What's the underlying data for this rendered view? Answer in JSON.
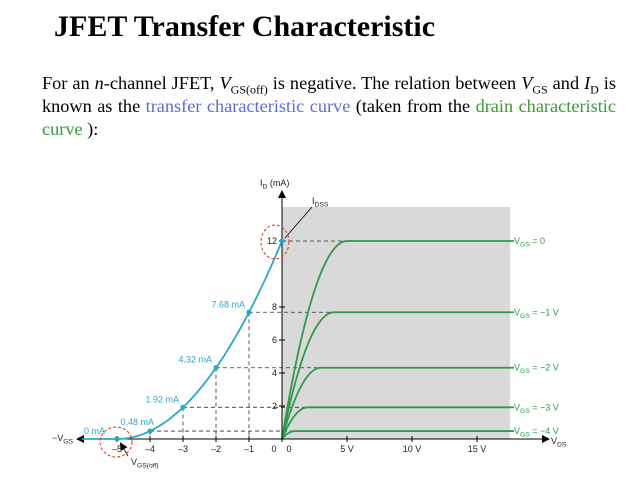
{
  "title": "JFET Transfer Characteristic",
  "body": {
    "t1": "For an ",
    "t2": "n",
    "t3": "-channel JFET, ",
    "t4": "V",
    "t5": "GS(off)",
    "t6": " is negative. The relation between ",
    "t7": "V",
    "t8": "GS",
    "t9": " and ",
    "t10": "I",
    "t11": "D",
    "t12": " is known as the ",
    "link_transfer": "transfer characteristic curve",
    "t13": " (taken from the ",
    "link_drain": "drain characteristic curve",
    "t14": " ):"
  },
  "colors": {
    "transfer_curve": "#2aa8c9",
    "drain_curves": "#2e9a4a",
    "panel_bg": "#d9d9d9",
    "highlight_circle": "#e0301e",
    "link_blue": "#5b6ed6",
    "link_green": "#3a9a3a"
  },
  "chart_data": {
    "type": "line",
    "y_axis_label": {
      "main": "I",
      "sub": "D",
      "unit": " (mA)"
    },
    "y_ticks": [
      "12",
      "8",
      "6",
      "4",
      "2"
    ],
    "idss_label": {
      "main": "I",
      "sub": "DSS"
    },
    "vgs_axis": {
      "label": "−V",
      "label_sub": "GS",
      "ticks": [
        {
          "value": -5,
          "label": "–5"
        },
        {
          "value": -4,
          "label": "–4"
        },
        {
          "value": -3,
          "label": "–3"
        },
        {
          "value": -2,
          "label": "–2"
        },
        {
          "value": -1,
          "label": "–1"
        },
        {
          "value": 0,
          "label": "0"
        }
      ],
      "vgs_off_label": {
        "main": "V",
        "sub": "GS(off)"
      }
    },
    "vds_axis": {
      "label": "V",
      "label_sub": "DS",
      "ticks": [
        {
          "value": 0,
          "label": "0"
        },
        {
          "value": 5,
          "label": "5 V"
        },
        {
          "value": 10,
          "label": "10 V"
        },
        {
          "value": 15,
          "label": "15 V"
        }
      ]
    },
    "transfer_points": [
      {
        "vgs": -5,
        "id": 0,
        "label": "0 mA"
      },
      {
        "vgs": -4,
        "id": 0.48,
        "label": "0.48 mA"
      },
      {
        "vgs": -3,
        "id": 1.92,
        "label": "1.92 mA"
      },
      {
        "vgs": -2,
        "id": 4.32,
        "label": "4.32 mA"
      },
      {
        "vgs": -1,
        "id": 7.68,
        "label": "7.68 mA"
      },
      {
        "vgs": 0,
        "id": 12,
        "label": ""
      }
    ],
    "drain_curves": [
      {
        "vgs": 0,
        "id_sat": 12,
        "label": "V",
        "label_sub": "GS",
        "label_val": " = 0"
      },
      {
        "vgs": -1,
        "id_sat": 7.68,
        "label": "V",
        "label_sub": "GS",
        "label_val": " = −1 V"
      },
      {
        "vgs": -2,
        "id_sat": 4.32,
        "label": "V",
        "label_sub": "GS",
        "label_val": " = −2 V"
      },
      {
        "vgs": -3,
        "id_sat": 1.92,
        "label": "V",
        "label_sub": "GS",
        "label_val": " = −3 V"
      },
      {
        "vgs": -4,
        "id_sat": 0.48,
        "label": "V",
        "label_sub": "GS",
        "label_val": " = −4 V"
      }
    ]
  }
}
